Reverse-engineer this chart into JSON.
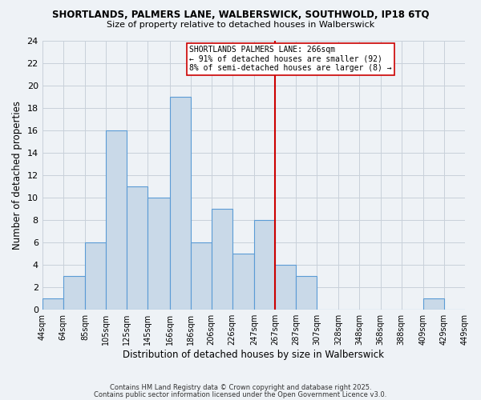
{
  "title_line1": "SHORTLANDS, PALMERS LANE, WALBERSWICK, SOUTHWOLD, IP18 6TQ",
  "title_line2": "Size of property relative to detached houses in Walberswick",
  "xlabel": "Distribution of detached houses by size in Walberswick",
  "ylabel": "Number of detached properties",
  "bin_edges": [
    44,
    64,
    85,
    105,
    125,
    145,
    166,
    186,
    206,
    226,
    247,
    267,
    287,
    307,
    328,
    348,
    368,
    388,
    409,
    429,
    449
  ],
  "bin_labels": [
    "44sqm",
    "64sqm",
    "85sqm",
    "105sqm",
    "125sqm",
    "145sqm",
    "166sqm",
    "186sqm",
    "206sqm",
    "226sqm",
    "247sqm",
    "267sqm",
    "287sqm",
    "307sqm",
    "328sqm",
    "348sqm",
    "368sqm",
    "388sqm",
    "409sqm",
    "429sqm",
    "449sqm"
  ],
  "counts": [
    1,
    3,
    6,
    16,
    11,
    10,
    19,
    6,
    9,
    5,
    8,
    4,
    3,
    0,
    0,
    0,
    0,
    0,
    1,
    0
  ],
  "bar_facecolor": "#c9d9e8",
  "bar_edgecolor": "#5b9bd5",
  "reference_line_x": 267,
  "reference_line_color": "#cc0000",
  "ylim": [
    0,
    24
  ],
  "yticks": [
    0,
    2,
    4,
    6,
    8,
    10,
    12,
    14,
    16,
    18,
    20,
    22,
    24
  ],
  "annotation_text": "SHORTLANDS PALMERS LANE: 266sqm\n← 91% of detached houses are smaller (92)\n8% of semi-detached houses are larger (8) →",
  "annotation_box_edgecolor": "#cc0000",
  "bg_color": "#eef2f6",
  "grid_color": "#c8d0da",
  "footer_line1": "Contains HM Land Registry data © Crown copyright and database right 2025.",
  "footer_line2": "Contains public sector information licensed under the Open Government Licence v3.0."
}
